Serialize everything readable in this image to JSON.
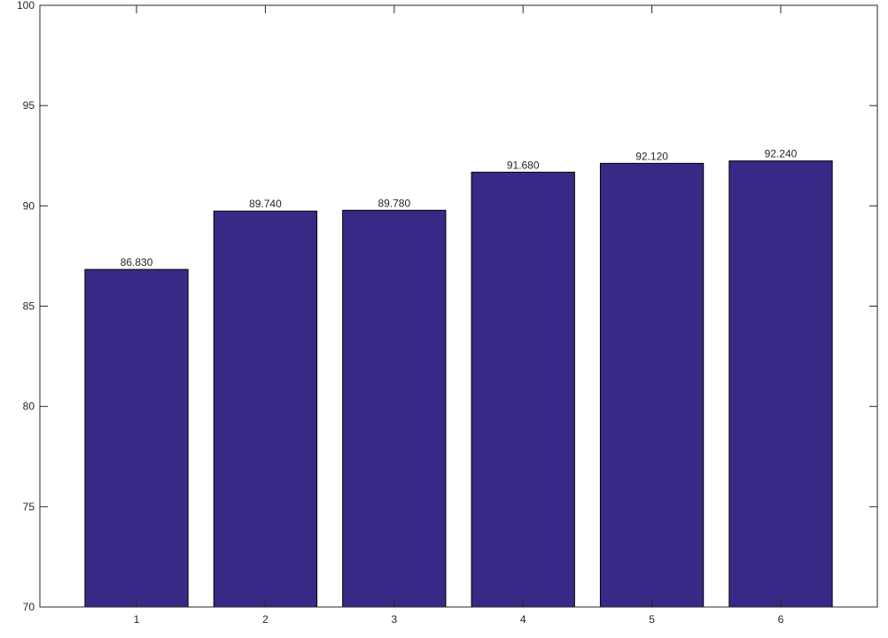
{
  "chart_data": {
    "type": "bar",
    "categories": [
      "1",
      "2",
      "3",
      "4",
      "5",
      "6"
    ],
    "values": [
      86.83,
      89.74,
      89.78,
      91.68,
      92.12,
      92.24
    ],
    "data_labels": [
      "86.830",
      "89.740",
      "89.780",
      "91.680",
      "92.120",
      "92.240"
    ],
    "title": "",
    "xlabel": "",
    "ylabel": "",
    "ylim": [
      70,
      100
    ],
    "yticks": [
      70,
      75,
      80,
      85,
      90,
      95,
      100
    ],
    "grid": false,
    "legend": "none",
    "colors": {
      "bar": "#372A87",
      "bar_edge": "#000000",
      "axes": "#262626",
      "background": "#ffffff"
    }
  }
}
